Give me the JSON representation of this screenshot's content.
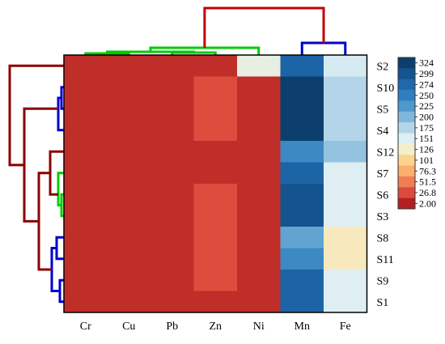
{
  "chart_data": {
    "type": "heatmap",
    "title": "",
    "columns": [
      "Cr",
      "Cu",
      "Pb",
      "Zn",
      "Ni",
      "Mn",
      "Fe"
    ],
    "rows": [
      "S2",
      "S10",
      "S5",
      "S4",
      "S12",
      "S7",
      "S6",
      "S3",
      "S8",
      "S11",
      "S9",
      "S1"
    ],
    "values": [
      [
        10,
        10,
        10,
        10,
        140,
        280,
        155
      ],
      [
        10,
        10,
        10,
        28,
        10,
        324,
        175
      ],
      [
        10,
        10,
        10,
        28,
        10,
        324,
        175
      ],
      [
        10,
        10,
        10,
        28,
        10,
        324,
        175
      ],
      [
        10,
        10,
        10,
        10,
        10,
        240,
        190
      ],
      [
        10,
        10,
        10,
        10,
        10,
        280,
        150
      ],
      [
        10,
        10,
        10,
        28,
        10,
        300,
        150
      ],
      [
        10,
        10,
        10,
        28,
        10,
        300,
        150
      ],
      [
        10,
        10,
        10,
        28,
        10,
        215,
        120
      ],
      [
        10,
        10,
        10,
        28,
        10,
        240,
        120
      ],
      [
        10,
        10,
        10,
        28,
        10,
        280,
        150
      ],
      [
        10,
        10,
        10,
        10,
        10,
        280,
        150
      ]
    ],
    "colorbar": {
      "ticks": [
        "324",
        "299",
        "274",
        "250",
        "225",
        "200",
        "175",
        "151",
        "126",
        "101",
        "76.3",
        "51.5",
        "26.8",
        "2.00"
      ],
      "colors": [
        "#0d3f6e",
        "#15548f",
        "#1f68ac",
        "#2f7fbe",
        "#4f98cb",
        "#7fb7da",
        "#b3d5e9",
        "#ddeef4",
        "#f5eecb",
        "#fdd48f",
        "#fcae6d",
        "#f07e55",
        "#dc4a3d",
        "#b2201f"
      ],
      "min": 2.0,
      "max": 324
    },
    "row_dendrogram_colors": [
      "#8b0000",
      "#0000cc",
      "#00cc00"
    ],
    "col_dendrogram_colors": [
      "#c00000",
      "#0000cc",
      "#00cc00"
    ]
  }
}
